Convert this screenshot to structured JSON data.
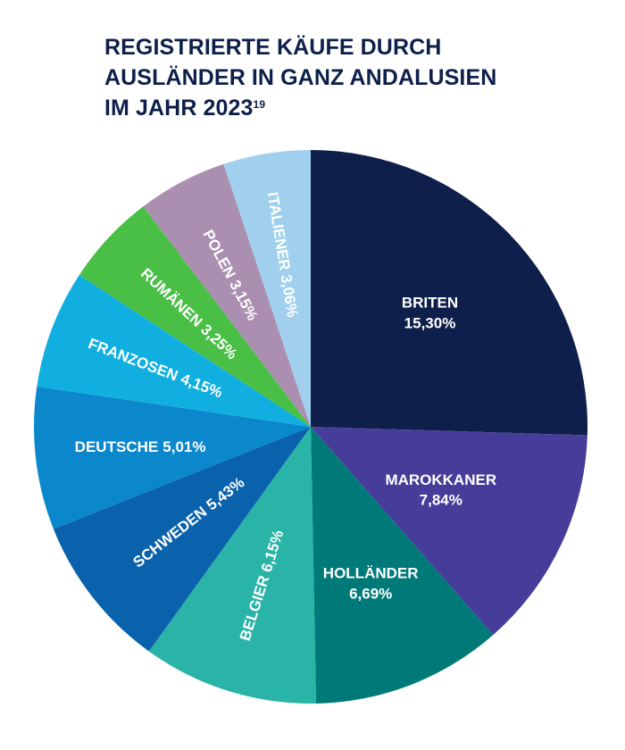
{
  "chart_data": {
    "type": "pie",
    "title_lines": [
      "REGISTRIERTE KÄUFE DURCH",
      "AUSLÄNDER IN GANZ ANDALUSIEN",
      "IM JAHR 2023"
    ],
    "title_superscript": "19",
    "unit": "%",
    "start": "top, clockwise",
    "slices": [
      {
        "label": "BRITEN",
        "value_text": "15,30%",
        "value": 15.3,
        "color": "#0d1f4a",
        "style": "stacked"
      },
      {
        "label": "MAROKKANER",
        "value_text": "7,84%",
        "value": 7.84,
        "color": "#463d9a",
        "style": "stacked"
      },
      {
        "label": "HOLLÄNDER",
        "value_text": "6,69%",
        "value": 6.69,
        "color": "#007a78",
        "style": "stacked"
      },
      {
        "label": "BELGIER",
        "value_text": "6,15%",
        "value": 6.15,
        "color": "#2ab4a7",
        "style": "radial"
      },
      {
        "label": "SCHWEDEN",
        "value_text": "5,43%",
        "value": 5.43,
        "color": "#0a61ac",
        "style": "radial"
      },
      {
        "label": "DEUTSCHE",
        "value_text": "5,01%",
        "value": 5.01,
        "color": "#0b87cb",
        "style": "inline"
      },
      {
        "label": "FRANZOSEN",
        "value_text": "4,15%",
        "value": 4.15,
        "color": "#10afe0",
        "style": "radial"
      },
      {
        "label": "RUMÄNEN",
        "value_text": "3,25%",
        "value": 3.25,
        "color": "#4abf46",
        "style": "radial"
      },
      {
        "label": "POLEN",
        "value_text": "3,15%",
        "value": 3.15,
        "color": "#ab8fb0",
        "style": "radial"
      },
      {
        "label": "ITALIENER",
        "value_text": "3,06%",
        "value": 3.06,
        "color": "#a0d0ee",
        "style": "radial"
      }
    ]
  }
}
